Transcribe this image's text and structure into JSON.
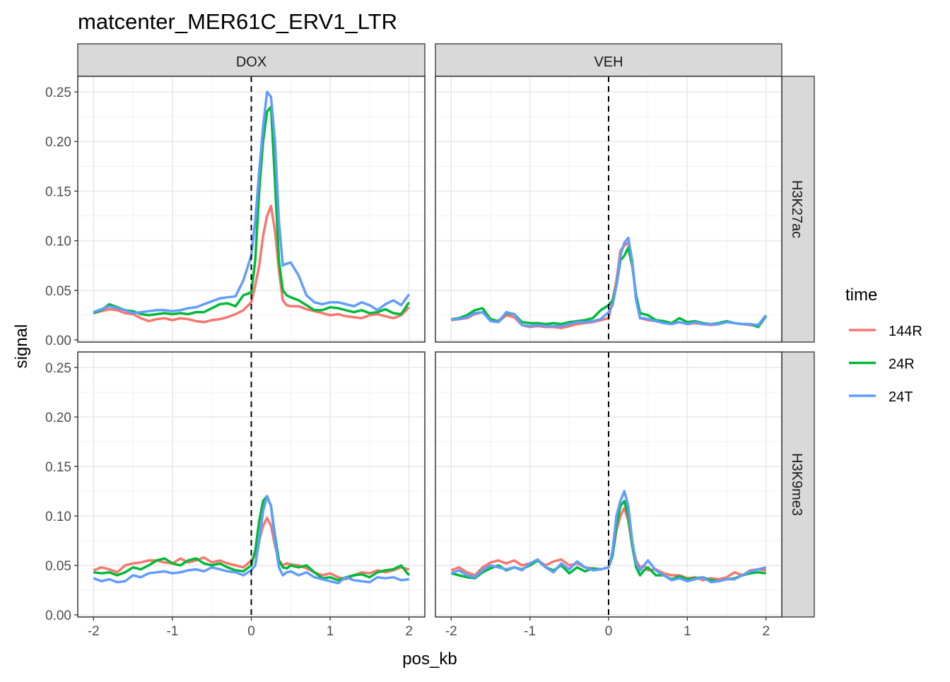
{
  "chart_data": {
    "type": "line",
    "title": "matcenter_MER61C_ERV1_LTR",
    "xlabel": "pos_kb",
    "ylabel": "signal",
    "xlim": [
      -2,
      2
    ],
    "ylim": [
      0,
      0.25
    ],
    "x_ticks": [
      "-2",
      "-1",
      "0",
      "1",
      "2"
    ],
    "y_ticks": [
      "0.00",
      "0.05",
      "0.10",
      "0.15",
      "0.20",
      "0.25"
    ],
    "vline": 0,
    "grid": true,
    "legend": {
      "title": "time",
      "placement": "right",
      "entries": [
        "144R",
        "24R",
        "24T"
      ]
    },
    "colors": {
      "144R": "#F8766D",
      "24R": "#00BA38",
      "24T": "#619CFF"
    },
    "col_facets": [
      "DOX",
      "VEH"
    ],
    "row_facets": [
      "H3K27ac",
      "H3K9me3"
    ],
    "x": [
      -2,
      -1.9,
      -1.8,
      -1.7,
      -1.6,
      -1.5,
      -1.4,
      -1.3,
      -1.2,
      -1.1,
      -1,
      -0.9,
      -0.8,
      -0.7,
      -0.6,
      -0.5,
      -0.4,
      -0.3,
      -0.2,
      -0.1,
      0,
      0.05,
      0.1,
      0.15,
      0.2,
      0.25,
      0.3,
      0.35,
      0.4,
      0.45,
      0.5,
      0.6,
      0.7,
      0.8,
      0.9,
      1,
      1.1,
      1.2,
      1.3,
      1.4,
      1.5,
      1.6,
      1.7,
      1.8,
      1.9,
      2
    ],
    "panels": [
      {
        "col": "DOX",
        "row": "H3K27ac",
        "series": [
          {
            "name": "144R",
            "values": [
              0.027,
              0.029,
              0.031,
              0.03,
              0.027,
              0.026,
              0.022,
              0.019,
              0.021,
              0.022,
              0.02,
              0.022,
              0.021,
              0.019,
              0.018,
              0.02,
              0.021,
              0.023,
              0.026,
              0.03,
              0.038,
              0.055,
              0.075,
              0.105,
              0.125,
              0.135,
              0.11,
              0.07,
              0.04,
              0.035,
              0.034,
              0.034,
              0.031,
              0.029,
              0.027,
              0.025,
              0.026,
              0.024,
              0.023,
              0.022,
              0.025,
              0.026,
              0.024,
              0.022,
              0.025,
              0.033
            ]
          },
          {
            "name": "24R",
            "values": [
              0.027,
              0.03,
              0.036,
              0.033,
              0.03,
              0.029,
              0.026,
              0.025,
              0.026,
              0.027,
              0.026,
              0.027,
              0.026,
              0.028,
              0.028,
              0.032,
              0.036,
              0.037,
              0.034,
              0.045,
              0.048,
              0.08,
              0.15,
              0.2,
              0.23,
              0.235,
              0.16,
              0.08,
              0.05,
              0.045,
              0.043,
              0.04,
              0.035,
              0.03,
              0.03,
              0.033,
              0.032,
              0.03,
              0.028,
              0.03,
              0.027,
              0.028,
              0.031,
              0.027,
              0.026,
              0.038
            ]
          },
          {
            "name": "24T",
            "values": [
              0.028,
              0.031,
              0.034,
              0.032,
              0.03,
              0.027,
              0.028,
              0.029,
              0.03,
              0.03,
              0.029,
              0.03,
              0.032,
              0.033,
              0.036,
              0.039,
              0.042,
              0.043,
              0.044,
              0.06,
              0.085,
              0.12,
              0.17,
              0.215,
              0.25,
              0.245,
              0.2,
              0.12,
              0.075,
              0.077,
              0.078,
              0.065,
              0.045,
              0.038,
              0.036,
              0.038,
              0.038,
              0.036,
              0.034,
              0.038,
              0.035,
              0.03,
              0.036,
              0.04,
              0.035,
              0.046
            ]
          }
        ]
      },
      {
        "col": "VEH",
        "row": "H3K27ac",
        "series": [
          {
            "name": "144R",
            "values": [
              0.02,
              0.021,
              0.022,
              0.026,
              0.028,
              0.02,
              0.018,
              0.025,
              0.023,
              0.015,
              0.013,
              0.014,
              0.013,
              0.013,
              0.012,
              0.014,
              0.016,
              0.017,
              0.018,
              0.02,
              0.022,
              0.04,
              0.06,
              0.09,
              0.095,
              0.098,
              0.08,
              0.04,
              0.022,
              0.021,
              0.02,
              0.019,
              0.018,
              0.017,
              0.018,
              0.016,
              0.017,
              0.016,
              0.015,
              0.016,
              0.018,
              0.017,
              0.016,
              0.015,
              0.014,
              0.025
            ]
          },
          {
            "name": "24R",
            "values": [
              0.021,
              0.022,
              0.025,
              0.03,
              0.032,
              0.021,
              0.019,
              0.027,
              0.026,
              0.018,
              0.017,
              0.017,
              0.016,
              0.017,
              0.016,
              0.018,
              0.019,
              0.02,
              0.022,
              0.03,
              0.035,
              0.04,
              0.055,
              0.08,
              0.085,
              0.093,
              0.075,
              0.045,
              0.027,
              0.026,
              0.025,
              0.02,
              0.019,
              0.017,
              0.022,
              0.018,
              0.019,
              0.017,
              0.016,
              0.017,
              0.019,
              0.017,
              0.016,
              0.016,
              0.013,
              0.024
            ]
          },
          {
            "name": "24T",
            "values": [
              0.021,
              0.021,
              0.023,
              0.027,
              0.028,
              0.019,
              0.018,
              0.028,
              0.026,
              0.015,
              0.014,
              0.015,
              0.014,
              0.014,
              0.014,
              0.016,
              0.018,
              0.018,
              0.019,
              0.021,
              0.028,
              0.035,
              0.055,
              0.085,
              0.098,
              0.103,
              0.08,
              0.04,
              0.022,
              0.022,
              0.021,
              0.019,
              0.017,
              0.016,
              0.018,
              0.016,
              0.018,
              0.016,
              0.016,
              0.016,
              0.018,
              0.017,
              0.016,
              0.016,
              0.015,
              0.025
            ]
          }
        ]
      },
      {
        "col": "DOX",
        "row": "H3K9me3",
        "series": [
          {
            "name": "144R",
            "values": [
              0.045,
              0.048,
              0.046,
              0.043,
              0.05,
              0.052,
              0.053,
              0.055,
              0.055,
              0.053,
              0.052,
              0.057,
              0.053,
              0.055,
              0.058,
              0.053,
              0.055,
              0.052,
              0.05,
              0.048,
              0.055,
              0.06,
              0.075,
              0.09,
              0.098,
              0.09,
              0.07,
              0.055,
              0.05,
              0.052,
              0.051,
              0.05,
              0.047,
              0.043,
              0.04,
              0.042,
              0.038,
              0.036,
              0.04,
              0.043,
              0.042,
              0.045,
              0.043,
              0.045,
              0.048,
              0.046
            ]
          },
          {
            "name": "24R",
            "values": [
              0.043,
              0.042,
              0.043,
              0.04,
              0.043,
              0.048,
              0.046,
              0.05,
              0.055,
              0.057,
              0.052,
              0.05,
              0.055,
              0.057,
              0.052,
              0.05,
              0.052,
              0.048,
              0.045,
              0.044,
              0.05,
              0.065,
              0.095,
              0.115,
              0.12,
              0.11,
              0.08,
              0.055,
              0.048,
              0.047,
              0.05,
              0.048,
              0.05,
              0.043,
              0.037,
              0.038,
              0.035,
              0.038,
              0.04,
              0.041,
              0.038,
              0.043,
              0.045,
              0.046,
              0.05,
              0.04
            ]
          },
          {
            "name": "24T",
            "values": [
              0.037,
              0.034,
              0.036,
              0.033,
              0.034,
              0.04,
              0.038,
              0.042,
              0.043,
              0.044,
              0.042,
              0.043,
              0.045,
              0.046,
              0.044,
              0.048,
              0.046,
              0.044,
              0.043,
              0.04,
              0.045,
              0.05,
              0.075,
              0.105,
              0.12,
              0.11,
              0.075,
              0.048,
              0.04,
              0.043,
              0.044,
              0.04,
              0.043,
              0.038,
              0.036,
              0.034,
              0.032,
              0.038,
              0.035,
              0.034,
              0.033,
              0.038,
              0.037,
              0.038,
              0.035,
              0.036
            ]
          }
        ]
      },
      {
        "col": "VEH",
        "row": "H3K9me3",
        "series": [
          {
            "name": "144R",
            "values": [
              0.045,
              0.048,
              0.043,
              0.04,
              0.048,
              0.053,
              0.055,
              0.052,
              0.055,
              0.05,
              0.052,
              0.055,
              0.05,
              0.054,
              0.056,
              0.05,
              0.052,
              0.048,
              0.047,
              0.046,
              0.048,
              0.06,
              0.085,
              0.1,
              0.108,
              0.095,
              0.07,
              0.055,
              0.048,
              0.05,
              0.045,
              0.046,
              0.042,
              0.04,
              0.04,
              0.037,
              0.038,
              0.035,
              0.037,
              0.036,
              0.038,
              0.043,
              0.04,
              0.045,
              0.046,
              0.045
            ]
          },
          {
            "name": "24R",
            "values": [
              0.042,
              0.04,
              0.038,
              0.037,
              0.043,
              0.047,
              0.05,
              0.045,
              0.048,
              0.046,
              0.05,
              0.055,
              0.048,
              0.045,
              0.05,
              0.042,
              0.048,
              0.044,
              0.047,
              0.046,
              0.048,
              0.06,
              0.09,
              0.11,
              0.115,
              0.1,
              0.07,
              0.048,
              0.04,
              0.045,
              0.048,
              0.04,
              0.04,
              0.036,
              0.039,
              0.036,
              0.037,
              0.038,
              0.035,
              0.034,
              0.036,
              0.037,
              0.04,
              0.042,
              0.043,
              0.042
            ]
          },
          {
            "name": "24T",
            "values": [
              0.042,
              0.045,
              0.04,
              0.038,
              0.045,
              0.05,
              0.048,
              0.046,
              0.048,
              0.045,
              0.052,
              0.056,
              0.048,
              0.043,
              0.052,
              0.046,
              0.054,
              0.048,
              0.045,
              0.046,
              0.048,
              0.065,
              0.1,
              0.115,
              0.125,
              0.11,
              0.075,
              0.052,
              0.045,
              0.05,
              0.055,
              0.045,
              0.04,
              0.035,
              0.037,
              0.034,
              0.036,
              0.038,
              0.033,
              0.034,
              0.036,
              0.036,
              0.04,
              0.044,
              0.046,
              0.048
            ]
          }
        ]
      }
    ]
  }
}
